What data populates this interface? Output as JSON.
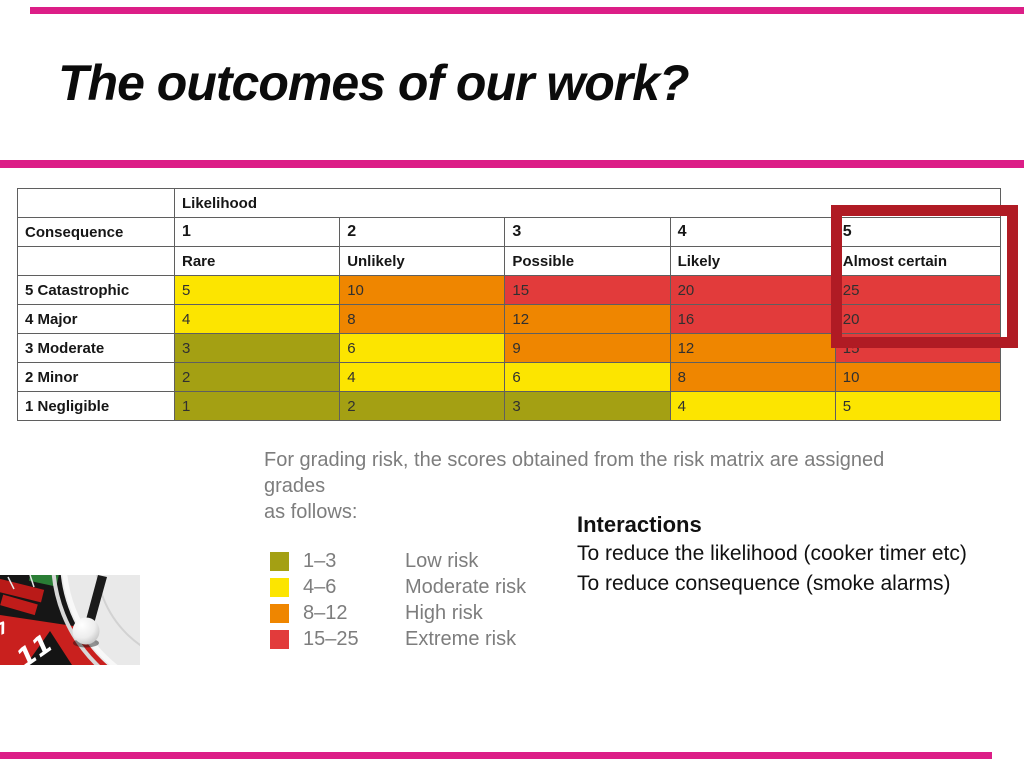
{
  "slide": {
    "title": "The outcomes of our work?",
    "accent_color": "#dc1e87"
  },
  "matrix": {
    "likelihood_label": "Likelihood",
    "consequence_label": "Consequence",
    "likelihood_numbers": [
      "1",
      "2",
      "3",
      "4",
      "5"
    ],
    "likelihood_names": [
      "Rare",
      "Unlikely",
      "Possible",
      "Likely",
      "Almost certain"
    ],
    "rows": [
      {
        "label": "5 Catastrophic",
        "cells": [
          {
            "value": "5",
            "band": "moderate"
          },
          {
            "value": "10",
            "band": "high"
          },
          {
            "value": "15",
            "band": "extreme"
          },
          {
            "value": "20",
            "band": "extreme"
          },
          {
            "value": "25",
            "band": "extreme"
          }
        ]
      },
      {
        "label": "4 Major",
        "cells": [
          {
            "value": "4",
            "band": "moderate"
          },
          {
            "value": "8",
            "band": "high"
          },
          {
            "value": "12",
            "band": "high"
          },
          {
            "value": "16",
            "band": "extreme"
          },
          {
            "value": "20",
            "band": "extreme"
          }
        ]
      },
      {
        "label": "3 Moderate",
        "cells": [
          {
            "value": "3",
            "band": "low"
          },
          {
            "value": "6",
            "band": "moderate"
          },
          {
            "value": "9",
            "band": "high"
          },
          {
            "value": "12",
            "band": "high"
          },
          {
            "value": "15",
            "band": "extreme"
          }
        ]
      },
      {
        "label": "2 Minor",
        "cells": [
          {
            "value": "2",
            "band": "low"
          },
          {
            "value": "4",
            "band": "moderate"
          },
          {
            "value": "6",
            "band": "moderate"
          },
          {
            "value": "8",
            "band": "high"
          },
          {
            "value": "10",
            "band": "high"
          }
        ]
      },
      {
        "label": "1 Negligible",
        "cells": [
          {
            "value": "1",
            "band": "low"
          },
          {
            "value": "2",
            "band": "low"
          },
          {
            "value": "3",
            "band": "low"
          },
          {
            "value": "4",
            "band": "moderate"
          },
          {
            "value": "5",
            "band": "moderate"
          }
        ]
      }
    ],
    "band_colors": {
      "low": "#a4a013",
      "moderate": "#fce500",
      "high": "#ef8600",
      "extreme": "#e23b3b"
    },
    "highlight": {
      "column": "5 Almost certain",
      "cells_enclosed": [
        "5",
        "Almost certain",
        "25",
        "20"
      ],
      "color": "#b01b24"
    }
  },
  "grading_note": {
    "lines": [
      "For grading risk, the scores obtained from the risk matrix are assigned",
      "grades",
      "as follows:"
    ]
  },
  "legend": {
    "entries": [
      {
        "range": "1–3",
        "label": "Low risk",
        "band": "low"
      },
      {
        "range": "4–6",
        "label": "Moderate risk",
        "band": "moderate"
      },
      {
        "range": "8–12",
        "label": "High risk",
        "band": "high"
      },
      {
        "range": "15–25",
        "label": "Extreme risk",
        "band": "extreme"
      }
    ]
  },
  "interactions": {
    "heading": "Interactions",
    "lines": [
      "To reduce the likelihood (cooker timer etc)",
      "To reduce consequence (smoke alarms)"
    ]
  },
  "images": {
    "bottom_left": "roulette-wheel-photo"
  },
  "chart_data": {
    "type": "heatmap",
    "title": "Risk matrix",
    "x_label": "Likelihood",
    "y_label": "Consequence",
    "x_categories": [
      "1 Rare",
      "2 Unlikely",
      "3 Possible",
      "4 Likely",
      "5 Almost certain"
    ],
    "y_categories": [
      "5 Catastrophic",
      "4 Major",
      "3 Moderate",
      "2 Minor",
      "1 Negligible"
    ],
    "values": [
      [
        5,
        10,
        15,
        20,
        25
      ],
      [
        4,
        8,
        12,
        16,
        20
      ],
      [
        3,
        6,
        9,
        12,
        15
      ],
      [
        2,
        4,
        6,
        8,
        10
      ],
      [
        1,
        2,
        3,
        4,
        5
      ]
    ],
    "grading": [
      {
        "scores": "1–3",
        "grade": "Low risk"
      },
      {
        "scores": "4–6",
        "grade": "Moderate risk"
      },
      {
        "scores": "8–12",
        "grade": "High risk"
      },
      {
        "scores": "15–25",
        "grade": "Extreme risk"
      }
    ]
  }
}
